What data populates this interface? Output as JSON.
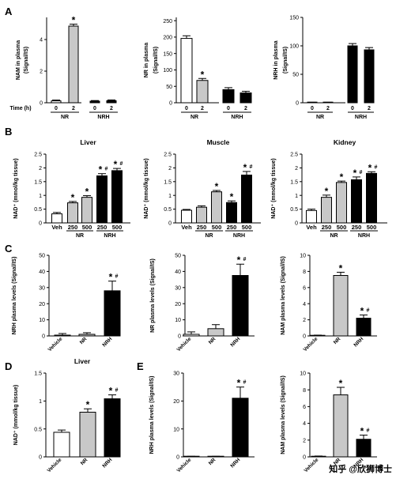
{
  "chart_data": [
    {
      "id": "A1",
      "type": "bar",
      "panel_letter": "A",
      "title": "",
      "ylabel": [
        "NAM in plasma",
        "(Signal/IS)"
      ],
      "ylim": [
        0,
        5.4
      ],
      "yticks": [
        0,
        2,
        4
      ],
      "xaxis_title": "Time (h)",
      "ticklabels": [
        "0",
        "2",
        "0",
        "2"
      ],
      "groups": [
        "NR",
        "NRH"
      ],
      "values": [
        0.12,
        4.85,
        0.1,
        0.13
      ],
      "errors": [
        0.05,
        0.12,
        0.04,
        0.05
      ],
      "fills": [
        "#ffffff",
        "#c8c8c8",
        "#000000",
        "#000000"
      ],
      "stars": [
        "",
        "*",
        "",
        ""
      ],
      "hashes": [
        "",
        "",
        "",
        ""
      ]
    },
    {
      "id": "A2",
      "type": "bar",
      "title": "",
      "ylabel": [
        "NR in plasma",
        "(Signal/IS)"
      ],
      "ylim": [
        0,
        260
      ],
      "yticks": [
        0,
        50,
        100,
        150,
        200,
        250
      ],
      "ticklabels": [
        "0",
        "2",
        "0",
        "2"
      ],
      "groups": [
        "NR",
        "NRH"
      ],
      "values": [
        196,
        68,
        40,
        30
      ],
      "errors": [
        8,
        6,
        6,
        5
      ],
      "fills": [
        "#ffffff",
        "#c8c8c8",
        "#000000",
        "#000000"
      ],
      "stars": [
        "",
        "*",
        "",
        ""
      ],
      "hashes": [
        "",
        "",
        "",
        ""
      ]
    },
    {
      "id": "A3",
      "type": "bar",
      "title": "",
      "ylabel": [
        "NRH in plasma",
        "(Signal/IS)"
      ],
      "ylim": [
        0,
        150
      ],
      "yticks": [
        0,
        50,
        100,
        150
      ],
      "ticklabels": [
        "0",
        "2",
        "0",
        "2"
      ],
      "groups": [
        "NR",
        "NRH"
      ],
      "values": [
        0.5,
        0.5,
        100,
        93
      ],
      "errors": [
        0.3,
        0.3,
        4,
        4
      ],
      "fills": [
        "#ffffff",
        "#c8c8c8",
        "#000000",
        "#000000"
      ],
      "stars": [
        "",
        "",
        "",
        ""
      ],
      "hashes": [
        "",
        "",
        "",
        ""
      ]
    },
    {
      "id": "B1",
      "type": "bar",
      "panel_letter": "B",
      "title": "Liver",
      "ylabel": [
        "NAD⁺ (mmol/kg tissue)"
      ],
      "ylim": [
        0,
        2.5
      ],
      "yticks": [
        0,
        0.5,
        1,
        1.5,
        2,
        2.5
      ],
      "ticklabels": [
        "Veh",
        "250",
        "500",
        "250",
        "500"
      ],
      "groups": [
        "NR",
        "NRH"
      ],
      "values": [
        0.33,
        0.73,
        0.93,
        1.71,
        1.9
      ],
      "errors": [
        0.05,
        0.05,
        0.06,
        0.08,
        0.08
      ],
      "fills": [
        "#ffffff",
        "#c8c8c8",
        "#c8c8c8",
        "#000000",
        "#000000"
      ],
      "stars": [
        "",
        "*",
        "*",
        "*",
        "*"
      ],
      "hashes": [
        "",
        "",
        "",
        "#",
        "#"
      ]
    },
    {
      "id": "B2",
      "type": "bar",
      "title": "Muscle",
      "ylabel": [
        "NAD⁺ (mmol/kg tissue)"
      ],
      "ylim": [
        0,
        2.5
      ],
      "yticks": [
        0,
        0.5,
        1,
        1.5,
        2,
        2.5
      ],
      "ticklabels": [
        "Veh",
        "250",
        "500",
        "250",
        "500"
      ],
      "groups": [
        "NR",
        "NRH"
      ],
      "values": [
        0.46,
        0.57,
        1.13,
        0.74,
        1.74
      ],
      "errors": [
        0.03,
        0.05,
        0.05,
        0.06,
        0.13
      ],
      "fills": [
        "#ffffff",
        "#c8c8c8",
        "#c8c8c8",
        "#000000",
        "#000000"
      ],
      "stars": [
        "",
        "",
        "*",
        "*",
        "*"
      ],
      "hashes": [
        "",
        "",
        "",
        "",
        "#"
      ]
    },
    {
      "id": "B3",
      "type": "bar",
      "title": "Kidney",
      "ylabel": [
        "NAD⁺ (mmol/kg tissue)"
      ],
      "ylim": [
        0,
        2.5
      ],
      "yticks": [
        0,
        0.5,
        1,
        1.5,
        2,
        2.5
      ],
      "ticklabels": [
        "Veh",
        "250",
        "500",
        "250",
        "500"
      ],
      "groups": [
        "NR",
        "NRH"
      ],
      "values": [
        0.45,
        0.93,
        1.47,
        1.57,
        1.8
      ],
      "errors": [
        0.05,
        0.08,
        0.05,
        0.1,
        0.06
      ],
      "fills": [
        "#ffffff",
        "#c8c8c8",
        "#c8c8c8",
        "#000000",
        "#000000"
      ],
      "stars": [
        "",
        "*",
        "*",
        "*",
        "*"
      ],
      "hashes": [
        "",
        "",
        "",
        "#",
        "#"
      ]
    },
    {
      "id": "C1",
      "type": "bar",
      "panel_letter": "C",
      "title": "",
      "ylabel": [
        "NRH plasma levels (Signal/IS)"
      ],
      "ylim": [
        0,
        50
      ],
      "yticks": [
        0,
        10,
        20,
        30,
        40,
        50
      ],
      "ticklabels": [
        "Vehicle",
        "NR",
        "NRH"
      ],
      "values": [
        0.5,
        1,
        28
      ],
      "errors": [
        1,
        1,
        6
      ],
      "fills": [
        "#ffffff",
        "#c8c8c8",
        "#000000"
      ],
      "stars": [
        "",
        "",
        "*"
      ],
      "hashes": [
        "",
        "",
        "#"
      ]
    },
    {
      "id": "C2",
      "type": "bar",
      "title": "",
      "ylabel": [
        "NR plasma levels (Signal/IS)"
      ],
      "ylim": [
        0,
        50
      ],
      "yticks": [
        0,
        10,
        20,
        30,
        40,
        50
      ],
      "ticklabels": [
        "Vehicle",
        "NR",
        "NRH"
      ],
      "values": [
        1,
        4.5,
        37.5
      ],
      "errors": [
        1.5,
        2.5,
        7
      ],
      "fills": [
        "#ffffff",
        "#c8c8c8",
        "#000000"
      ],
      "stars": [
        "",
        "",
        "*"
      ],
      "hashes": [
        "",
        "",
        "#"
      ]
    },
    {
      "id": "C3",
      "type": "bar",
      "title": "",
      "ylabel": [
        "NAM plasma levels (Signal/IS)"
      ],
      "ylim": [
        0,
        10
      ],
      "yticks": [
        0,
        2,
        4,
        6,
        8,
        10
      ],
      "ticklabels": [
        "Vehicle",
        "NR",
        "NRH"
      ],
      "values": [
        0.05,
        7.5,
        2.2
      ],
      "errors": [
        0.05,
        0.4,
        0.4
      ],
      "fills": [
        "#ffffff",
        "#c8c8c8",
        "#000000"
      ],
      "stars": [
        "",
        "*",
        "*"
      ],
      "hashes": [
        "",
        "",
        "#"
      ]
    },
    {
      "id": "D1",
      "type": "bar",
      "panel_letter": "D",
      "title": "Liver",
      "ylabel": [
        "NAD⁺ (mmol/kg tissue)"
      ],
      "ylim": [
        0,
        1.5
      ],
      "yticks": [
        0,
        0.5,
        1,
        1.5
      ],
      "ticklabels": [
        "Vehicle",
        "NR",
        "NRH"
      ],
      "values": [
        0.44,
        0.8,
        1.04
      ],
      "errors": [
        0.04,
        0.06,
        0.07
      ],
      "fills": [
        "#ffffff",
        "#c8c8c8",
        "#000000"
      ],
      "stars": [
        "",
        "*",
        "*"
      ],
      "hashes": [
        "",
        "",
        "#"
      ]
    },
    {
      "id": "E1",
      "type": "bar",
      "panel_letter": "E",
      "title": "",
      "ylabel": [
        "NRH plasma levels (Signal/IS)"
      ],
      "ylim": [
        0,
        30
      ],
      "yticks": [
        0,
        10,
        20,
        30
      ],
      "ticklabels": [
        "Vehicle",
        "NR",
        "NRH"
      ],
      "values": [
        0.1,
        0.1,
        21
      ],
      "errors": [
        0.1,
        0.1,
        4
      ],
      "fills": [
        "#ffffff",
        "#c8c8c8",
        "#000000"
      ],
      "stars": [
        "",
        "",
        "*"
      ],
      "hashes": [
        "",
        "",
        "#"
      ]
    },
    {
      "id": "E2",
      "type": "bar",
      "title": "",
      "ylabel": [
        "NAM plasma levels (Signal/IS)"
      ],
      "ylim": [
        0,
        10
      ],
      "yticks": [
        0,
        2,
        4,
        6,
        8,
        10
      ],
      "ticklabels": [
        "Vehicle",
        "NR",
        "NRH"
      ],
      "values": [
        0.05,
        7.4,
        2.1
      ],
      "errors": [
        0.05,
        0.9,
        0.5
      ],
      "fills": [
        "#ffffff",
        "#c8c8c8",
        "#000000"
      ],
      "stars": [
        "",
        "*",
        "*"
      ],
      "hashes": [
        "",
        "",
        "#"
      ]
    }
  ],
  "watermark": "知乎 @欣狮博士"
}
